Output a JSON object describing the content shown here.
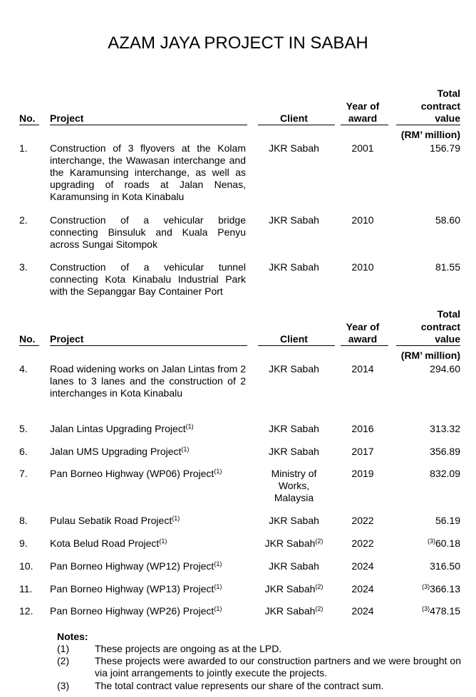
{
  "title": "AZAM JAYA PROJECT IN SABAH",
  "header": {
    "no": "No.",
    "project": "Project",
    "client": "Client",
    "year_line1": "Year of",
    "year_line2": "award",
    "value_line1": "Total",
    "value_line2": "contract",
    "value_line3": "value",
    "unit": "(RM’ million)"
  },
  "rows": [
    {
      "no": "1.",
      "project": "Construction of 3 flyovers at the Kolam interchange, the Wawasan interchange and the Karamunsing interchange, as well as upgrading of roads at Jalan Nenas, Karamunsing in Kota Kinabalu",
      "project_ref": "",
      "client": "JKR Sabah",
      "client_ref": "",
      "year": "2001",
      "value_ref": "",
      "value": "156.79"
    },
    {
      "no": "2.",
      "project": "Construction of a vehicular bridge connecting Binsuluk and Kuala Penyu across Sungai Sitompok",
      "project_ref": "",
      "client": "JKR Sabah",
      "client_ref": "",
      "year": "2010",
      "value_ref": "",
      "value": "58.60"
    },
    {
      "no": "3.",
      "project": "Construction of a vehicular tunnel connecting Kota Kinabalu Industrial Park with the Sepanggar Bay Container Port",
      "project_ref": "",
      "client": "JKR Sabah",
      "client_ref": "",
      "year": "2010",
      "value_ref": "",
      "value": "81.55"
    },
    {
      "no": "4.",
      "project": "Road widening works on Jalan Lintas from 2 lanes to 3 lanes and the construction of 2 interchanges in Kota Kinabalu",
      "project_ref": "",
      "client": "JKR Sabah",
      "client_ref": "",
      "year": "2014",
      "value_ref": "",
      "value": "294.60"
    },
    {
      "no": "5.",
      "project": "Jalan Lintas Upgrading Project",
      "project_ref": "(1)",
      "client": "JKR Sabah",
      "client_ref": "",
      "year": "2016",
      "value_ref": "",
      "value": "313.32"
    },
    {
      "no": "6.",
      "project": "Jalan UMS Upgrading Project",
      "project_ref": "(1)",
      "client": "JKR Sabah",
      "client_ref": "",
      "year": "2017",
      "value_ref": "",
      "value": "356.89"
    },
    {
      "no": "7.",
      "project": "Pan Borneo Highway (WP06) Project",
      "project_ref": "(1)",
      "client": "Ministry of Works, Malaysia",
      "client_ref": "",
      "year": "2019",
      "value_ref": "",
      "value": "832.09"
    },
    {
      "no": "8.",
      "project": "Pulau Sebatik Road Project",
      "project_ref": "(1)",
      "client": "JKR Sabah",
      "client_ref": "",
      "year": "2022",
      "value_ref": "",
      "value": "56.19"
    },
    {
      "no": "9.",
      "project": "Kota Belud Road Project",
      "project_ref": "(1)",
      "client": "JKR Sabah",
      "client_ref": "(2)",
      "year": "2022",
      "value_ref": "(3)",
      "value": "60.18"
    },
    {
      "no": "10.",
      "project": "Pan Borneo Highway (WP12) Project",
      "project_ref": "(1)",
      "client": "JKR Sabah",
      "client_ref": "",
      "year": "2024",
      "value_ref": "",
      "value": "316.50"
    },
    {
      "no": "11.",
      "project": "Pan Borneo Highway (WP13) Project",
      "project_ref": "(1)",
      "client": "JKR Sabah",
      "client_ref": "(2)",
      "year": "2024",
      "value_ref": "(3)",
      "value": "366.13"
    },
    {
      "no": "12.",
      "project": "Pan Borneo Highway (WP26) Project",
      "project_ref": "(1)",
      "client": "JKR Sabah",
      "client_ref": "(2)",
      "year": "2024",
      "value_ref": "(3)",
      "value": "478.15"
    }
  ],
  "notes": {
    "heading": "Notes:",
    "items": [
      {
        "ref": "(1)",
        "text": "These projects are ongoing as at the LPD."
      },
      {
        "ref": "(2)",
        "text": "These projects were awarded to our construction partners and we were brought on via joint arrangements to jointly execute the projects."
      },
      {
        "ref": "(3)",
        "text": "The total contract value represents our share of the contract sum."
      }
    ]
  }
}
